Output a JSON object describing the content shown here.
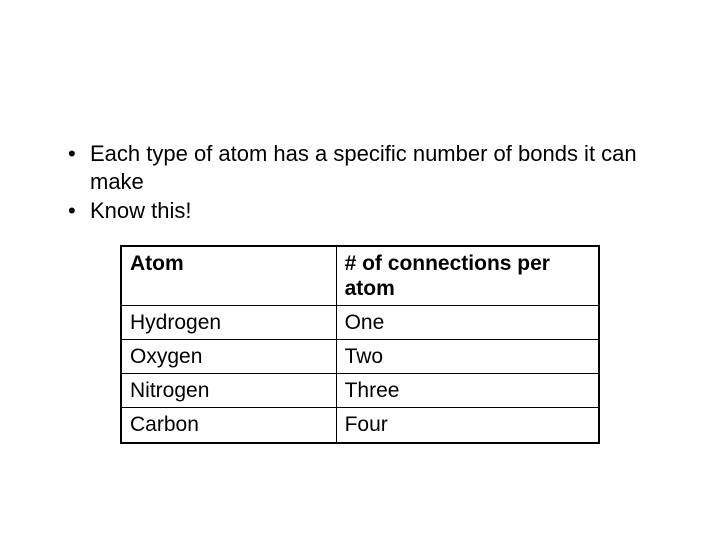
{
  "bullets": [
    "Each type of atom has a specific number of bonds it can make",
    "Know this!"
  ],
  "table": {
    "columns": [
      "Atom",
      "# of connections per atom"
    ],
    "rows": [
      [
        "Hydrogen",
        "One"
      ],
      [
        "Oxygen",
        "Two"
      ],
      [
        "Nitrogen",
        "Three"
      ],
      [
        "Carbon",
        "Four"
      ]
    ],
    "border_color": "#000000",
    "background_color": "#ffffff",
    "header_font_weight": "bold",
    "font_size_pt": 16,
    "col_widths_pct": [
      45,
      55
    ]
  },
  "background_color": "#ffffff",
  "text_color": "#000000"
}
